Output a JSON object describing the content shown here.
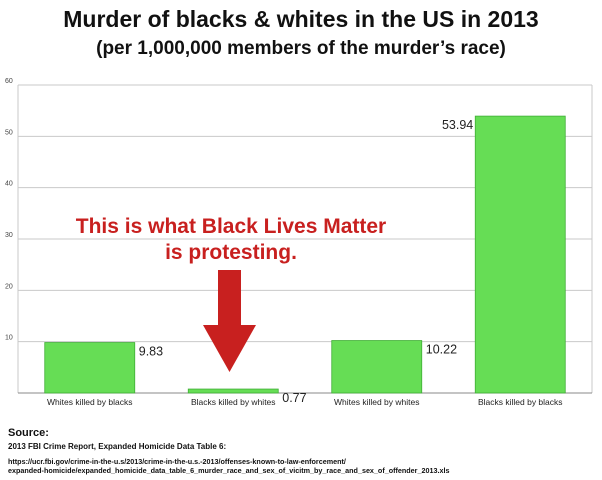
{
  "header": {
    "title": "Murder of blacks & whites in the US in 2013",
    "subtitle": "(per 1,000,000 members of the murder’s race)"
  },
  "annotation": {
    "line1": "This is what Black Lives Matter",
    "line2": "is protesting.",
    "color": "#c8201f",
    "arrow_color": "#c8201f"
  },
  "source": {
    "heading": "Source:",
    "line": "2013 FBI Crime Report, Expanded Homicide Data Table 6:",
    "url_line1": "https://ucr.fbi.gov/crime-in-the-u.s/2013/crime-in-the-u.s.-2013/offenses-known-to-law-enforcement/",
    "url_line2": "expanded-homicide/expanded_homicide_data_table_6_murder_race_and_sex_of_vicitm_by_race_and_sex_of_offender_2013.xls"
  },
  "colors": {
    "bar": "#66dd55",
    "bar_stroke": "#3fae35",
    "grid": "#c9c9c9",
    "axis": "#888888"
  },
  "chart_data": {
    "type": "bar",
    "title": "Murder of blacks & whites in the US in 2013",
    "subtitle": "(per 1,000,000 members of the murder’s race)",
    "categories": [
      "Whites killed by blacks",
      "Blacks killed by whites",
      "Whites killed by whites",
      "Blacks killed by blacks"
    ],
    "values": [
      9.83,
      0.77,
      10.22,
      53.94
    ],
    "data_labels": [
      "9.83",
      "0.77",
      "10.22",
      "53.94"
    ],
    "yticks": [
      0,
      10,
      20,
      30,
      40,
      50,
      60
    ],
    "ytick_labels": [
      "",
      "10",
      "20",
      "30",
      "40",
      "50",
      "60"
    ],
    "ylim": [
      0,
      60
    ],
    "xlabel": "",
    "ylabel": "",
    "grid": true,
    "legend": "none"
  }
}
